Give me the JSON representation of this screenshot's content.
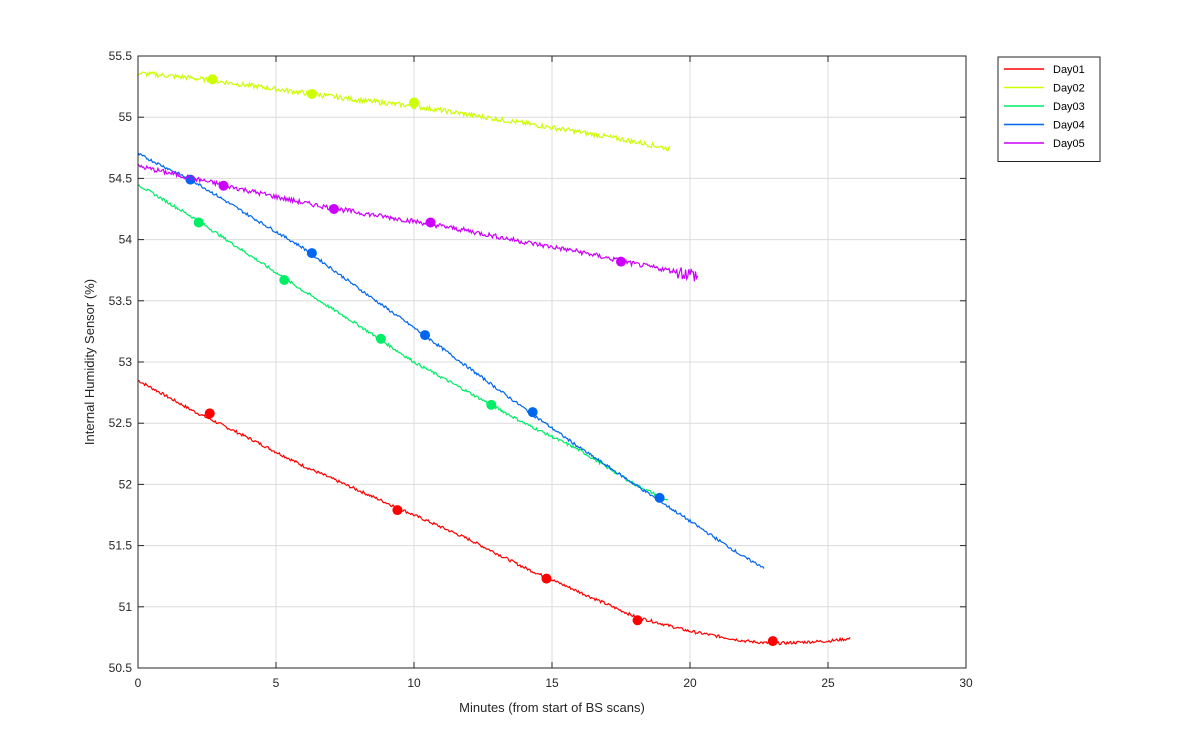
{
  "chart_data": {
    "type": "line",
    "title": "",
    "xlabel": "Minutes (from start of BS scans)",
    "ylabel": "Internal Humidity Sensor (%)",
    "xlim": [
      0,
      30
    ],
    "ylim": [
      50.5,
      55.5
    ],
    "xticks": [
      "0",
      "5",
      "10",
      "15",
      "20",
      "25",
      "30"
    ],
    "yticks": [
      "50.5",
      "51",
      "51.5",
      "52",
      "52.5",
      "53",
      "53.5",
      "54",
      "54.5",
      "55",
      "55.5"
    ],
    "grid": true,
    "legend_position": "outside-top-right",
    "series": [
      {
        "name": "Day01",
        "color": "#ff0000",
        "x": [
          0,
          2,
          4,
          6,
          8,
          10,
          12,
          14,
          16,
          18,
          20,
          21,
          22,
          23,
          24,
          25,
          25.8
        ],
        "y": [
          52.85,
          52.6,
          52.38,
          52.15,
          51.95,
          51.75,
          51.55,
          51.32,
          51.12,
          50.92,
          50.8,
          50.76,
          50.72,
          50.7,
          50.71,
          50.72,
          50.74
        ],
        "markers_x": [
          2.6,
          9.4,
          14.8,
          18.1,
          23.0
        ],
        "markers_y": [
          52.58,
          51.79,
          51.23,
          50.89,
          50.72
        ]
      },
      {
        "name": "Day02",
        "color": "#ccff00",
        "x": [
          0,
          2,
          4,
          6,
          8,
          10,
          12,
          14,
          16,
          18,
          19.3
        ],
        "y": [
          55.36,
          55.32,
          55.26,
          55.2,
          55.14,
          55.09,
          55.02,
          54.95,
          54.88,
          54.8,
          54.74
        ],
        "markers_x": [
          2.7,
          6.3,
          10.0
        ],
        "markers_y": [
          55.31,
          55.19,
          55.12
        ]
      },
      {
        "name": "Day03",
        "color": "#00ee66",
        "x": [
          0,
          2,
          4,
          6,
          8,
          10,
          12,
          14,
          16,
          18,
          19.2
        ],
        "y": [
          54.45,
          54.18,
          53.88,
          53.58,
          53.3,
          53.0,
          52.75,
          52.5,
          52.28,
          52.0,
          51.87
        ],
        "markers_x": [
          2.2,
          5.3,
          8.8,
          12.8
        ],
        "markers_y": [
          54.14,
          53.67,
          53.19,
          52.65
        ]
      },
      {
        "name": "Day04",
        "color": "#0066ee",
        "x": [
          0,
          2,
          4,
          6,
          8,
          10,
          12,
          14,
          16,
          18,
          20,
          22,
          22.7
        ],
        "y": [
          54.7,
          54.48,
          54.2,
          53.93,
          53.6,
          53.28,
          52.95,
          52.62,
          52.3,
          52.0,
          51.7,
          51.4,
          51.32
        ],
        "markers_x": [
          1.9,
          6.3,
          10.4,
          14.3,
          18.9
        ],
        "markers_y": [
          54.49,
          53.89,
          53.22,
          52.59,
          51.89
        ]
      },
      {
        "name": "Day05",
        "color": "#cc00ff",
        "x": [
          0,
          2,
          4,
          6,
          8,
          10,
          12,
          14,
          16,
          18,
          20,
          20.3
        ],
        "y": [
          54.6,
          54.5,
          54.4,
          54.3,
          54.22,
          54.15,
          54.07,
          53.98,
          53.9,
          53.8,
          53.72,
          53.7
        ],
        "markers_x": [
          3.1,
          7.1,
          10.6,
          17.5
        ],
        "markers_y": [
          54.44,
          54.25,
          54.14,
          53.82
        ]
      }
    ]
  }
}
